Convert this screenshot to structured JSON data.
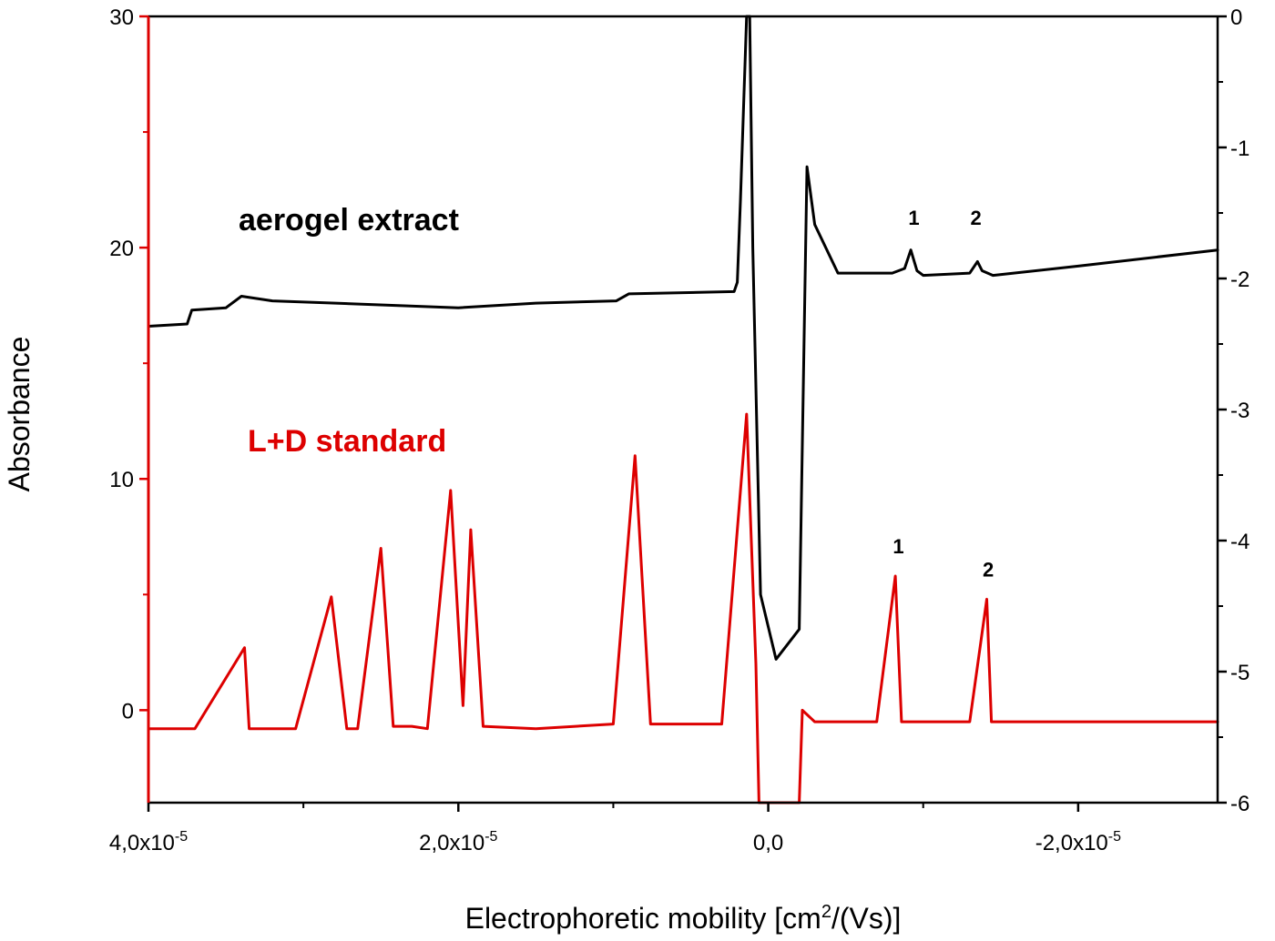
{
  "chart_data": {
    "type": "line",
    "title": "",
    "xlabel": "Electrophoretic mobility [cm²/(Vs)]",
    "ylabel": "Absorbance",
    "xlim": [
      4e-05,
      -2.9e-05
    ],
    "ylim_left": [
      -4.0,
      30
    ],
    "ylim_right": [
      -6,
      0
    ],
    "left_ticks": [
      {
        "value": 0,
        "label": "0"
      },
      {
        "value": 10,
        "label": "10"
      },
      {
        "value": 20,
        "label": "20"
      },
      {
        "value": 30,
        "label": "30"
      }
    ],
    "right_ticks": [
      {
        "value": 0,
        "label": "0"
      },
      {
        "value": -1,
        "label": "-1"
      },
      {
        "value": -2,
        "label": "-2"
      },
      {
        "value": -3,
        "label": "-3"
      },
      {
        "value": -4,
        "label": "-4"
      },
      {
        "value": -5,
        "label": "-5"
      },
      {
        "value": -6,
        "label": "-6"
      }
    ],
    "x_ticks": [
      {
        "value": 4e-05,
        "base": "4,0x10",
        "exp": "-5"
      },
      {
        "value": 2e-05,
        "base": "2,0x10",
        "exp": "-5"
      },
      {
        "value": 0.0,
        "base": "0,0",
        "exp": ""
      },
      {
        "value": -2e-05,
        "base": "-2,0x10",
        "exp": "-5"
      }
    ],
    "series": [
      {
        "name": "aerogel extract",
        "color": "#000000",
        "axis": "left",
        "x": [
          4e-05,
          3.75e-05,
          3.72e-05,
          3.5e-05,
          3.4e-05,
          3.2e-05,
          2e-05,
          1.5e-05,
          9.8e-06,
          9e-06,
          2.2e-06,
          2e-06,
          1.8e-06,
          1.4e-06,
          1.2e-06,
          1e-06,
          5e-07,
          -5e-07,
          -2e-06,
          -2.5e-06,
          -3e-06,
          -4.5e-06,
          -8e-06,
          -8.8e-06,
          -9.2e-06,
          -9.6e-06,
          -1e-05,
          -1.3e-05,
          -1.35e-05,
          -1.38e-05,
          -1.45e-05,
          -2e-05,
          -2.9e-05
        ],
        "y": [
          16.6,
          16.7,
          17.3,
          17.4,
          17.9,
          17.7,
          17.4,
          17.6,
          17.7,
          18.0,
          18.1,
          18.5,
          22.0,
          30.0,
          30.0,
          20.0,
          5.0,
          2.2,
          3.5,
          23.5,
          21.0,
          18.9,
          18.9,
          19.1,
          19.9,
          19.0,
          18.8,
          18.9,
          19.4,
          19.0,
          18.8,
          19.2,
          19.9
        ]
      },
      {
        "name": "L+D standard",
        "color": "#dd0000",
        "axis": "left",
        "x": [
          4e-05,
          3.7e-05,
          3.38e-05,
          3.35e-05,
          3.2e-05,
          3.05e-05,
          2.82e-05,
          2.72e-05,
          2.65e-05,
          2.5e-05,
          2.42e-05,
          2.3e-05,
          2.2e-05,
          2.05e-05,
          1.97e-05,
          1.92e-05,
          1.84e-05,
          1.5e-05,
          1e-05,
          8.6e-06,
          7.6e-06,
          3e-06,
          1.4e-06,
          8e-07,
          6e-07,
          5e-07,
          -2e-06,
          -2.2e-06,
          -3e-06,
          -7e-06,
          -8.2e-06,
          -8.6e-06,
          -9e-06,
          -1.3e-05,
          -1.41e-05,
          -1.44e-05,
          -1.48e-05,
          -2e-05,
          -2.9e-05
        ],
        "y": [
          -0.8,
          -0.8,
          2.7,
          -0.8,
          -0.8,
          -0.8,
          4.9,
          -0.8,
          -0.8,
          7.0,
          -0.7,
          -0.7,
          -0.8,
          9.5,
          0.2,
          7.8,
          -0.7,
          -0.8,
          -0.6,
          11.0,
          -0.6,
          -0.6,
          12.8,
          2.0,
          -4.0,
          -4.0,
          -4.0,
          0.0,
          -0.5,
          -0.5,
          5.8,
          -0.5,
          -0.5,
          -0.5,
          4.8,
          -0.5,
          -0.5,
          -0.5,
          -0.5
        ]
      }
    ],
    "annotations": [
      {
        "text": "1",
        "series": "aerogel extract",
        "x": -9.4e-06,
        "y": 21.3
      },
      {
        "text": "2",
        "series": "aerogel extract",
        "x": -1.34e-05,
        "y": 21.3
      },
      {
        "text": "1",
        "series": "L+D standard",
        "x": -8.4e-06,
        "y": 7.1
      },
      {
        "text": "2",
        "series": "L+D standard",
        "x": -1.42e-05,
        "y": 6.1
      }
    ],
    "legend_labels": {
      "aerogel": {
        "text": "aerogel extract",
        "color": "#000000"
      },
      "standard": {
        "text": "L+D standard",
        "color": "#dd0000"
      }
    },
    "colors": {
      "left_axis": "#dd0000",
      "right_axis": "#000000",
      "frame": "#000000"
    }
  }
}
